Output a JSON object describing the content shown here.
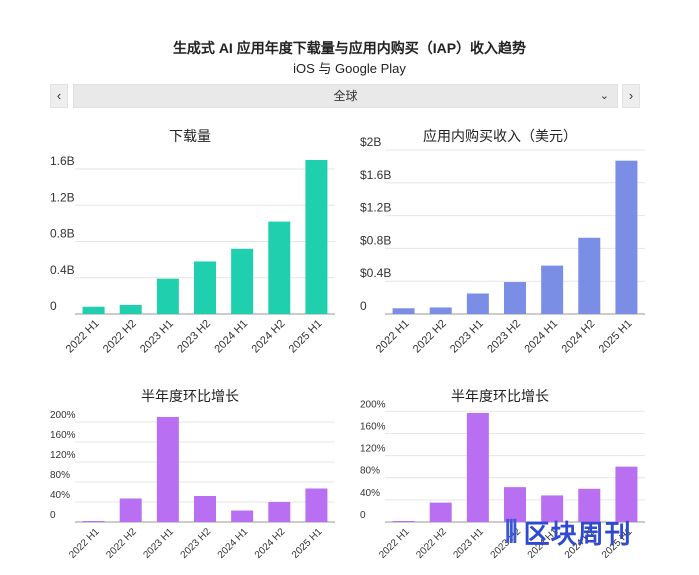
{
  "header": {
    "title": "生成式 AI 应用年度下载量与应用内购买（IAP）收入趋势",
    "subtitle": "iOS 与 Google Play"
  },
  "region_selector": {
    "prev_icon": "chevron-left-icon",
    "prev_label": "‹",
    "next_icon": "chevron-right-icon",
    "next_label": "›",
    "value": "全球",
    "dropdown_icon": "chevron-down-icon",
    "dropdown_label": "⌄"
  },
  "logo": {
    "mark": "⫴",
    "text": "区块周刊"
  },
  "chart_data": [
    {
      "type": "bar",
      "title": "下载量",
      "categories": [
        "2022 H1",
        "2022 H2",
        "2023 H1",
        "2023 H2",
        "2024 H1",
        "2024 H2",
        "2025 H1"
      ],
      "values": [
        0.08,
        0.1,
        0.39,
        0.58,
        0.72,
        1.02,
        1.7
      ],
      "yticks": [
        0,
        0.4,
        0.8,
        1.2,
        1.6
      ],
      "ytick_labels": [
        "0",
        "0.4B",
        "0.8B",
        "1.2B",
        "1.6B"
      ],
      "ylim": [
        0,
        1.7
      ],
      "color": "#1fcfae",
      "grid": true
    },
    {
      "type": "bar",
      "title": "应用内购买收入（美元）",
      "categories": [
        "2022 H1",
        "2022 H2",
        "2023 H1",
        "2023 H2",
        "2024 H1",
        "2024 H2",
        "2025 H1"
      ],
      "values": [
        0.07,
        0.08,
        0.25,
        0.39,
        0.59,
        0.93,
        1.87
      ],
      "yticks": [
        0,
        0.4,
        0.8,
        1.2,
        1.6,
        2.0
      ],
      "ytick_labels": [
        "0",
        "$0.4B",
        "$0.8B",
        "$1.2B",
        "$1.6B",
        "$2B"
      ],
      "ylim": [
        0,
        2.0
      ],
      "color": "#7b8ee6",
      "grid": true
    },
    {
      "type": "bar",
      "title": "半年度环比增长",
      "categories": [
        "2022 H1",
        "2022 H2",
        "2023 H1",
        "2023 H2",
        "2024 H1",
        "2024 H2",
        "2025 H1"
      ],
      "values": [
        0,
        47,
        210,
        52,
        23,
        40,
        67
      ],
      "yticks": [
        0,
        40,
        80,
        120,
        160,
        200
      ],
      "ytick_labels": [
        "0",
        "40%",
        "80%",
        "120%",
        "160%",
        "200%"
      ],
      "ylim": [
        0,
        220
      ],
      "color": "#b96ff2",
      "grid": true
    },
    {
      "type": "bar",
      "title": "半年度环比增长",
      "categories": [
        "2022 H1",
        "2022 H2",
        "2023 H1",
        "2023 H2",
        "2024 H1",
        "2024 H2",
        "2025 H1"
      ],
      "values": [
        0,
        35,
        197,
        63,
        48,
        60,
        100
      ],
      "yticks": [
        0,
        40,
        80,
        120,
        160,
        200
      ],
      "ytick_labels": [
        "0",
        "40%",
        "80%",
        "120%",
        "160%",
        "200%"
      ],
      "ylim": [
        0,
        215
      ],
      "color": "#b96ff2",
      "grid": true
    }
  ]
}
